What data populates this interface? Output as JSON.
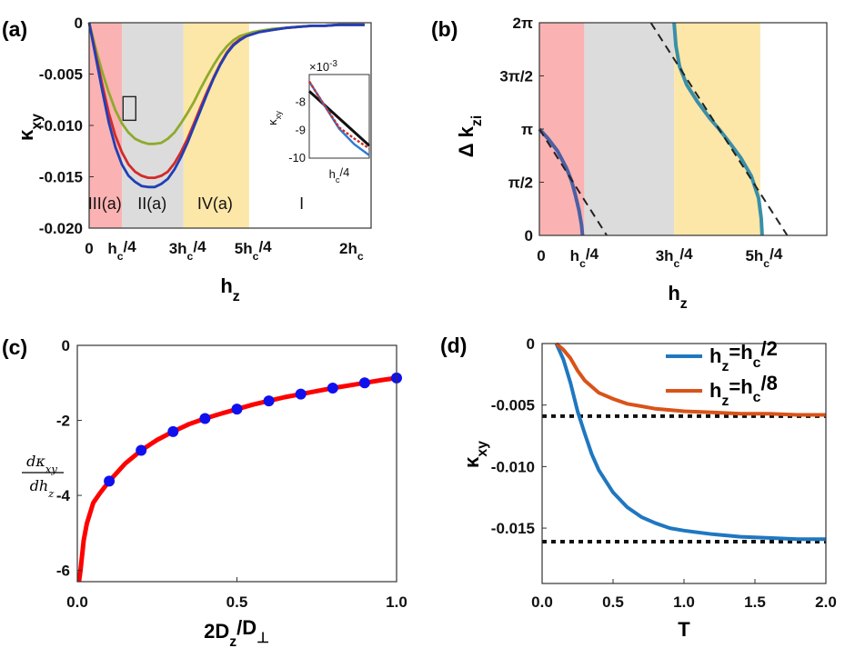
{
  "chart_data": [
    {
      "id": "a",
      "type": "line",
      "panel_label": "(a)",
      "xlabel_main": "h",
      "xlabel_sub": "z",
      "ylabel_main": "κ",
      "ylabel_sub": "xy",
      "xlim": [
        0,
        2.15
      ],
      "ylim": [
        -0.02,
        0
      ],
      "xticks": [
        {
          "v": 0,
          "main": "0",
          "sub": "",
          "rest": ""
        },
        {
          "v": 0.25,
          "main": "h",
          "sub": "c",
          "rest": "/4"
        },
        {
          "v": 0.75,
          "main": "3h",
          "sub": "c",
          "rest": "/4"
        },
        {
          "v": 1.25,
          "main": "5h",
          "sub": "c",
          "rest": "/4"
        },
        {
          "v": 2.0,
          "main": "2h",
          "sub": "c",
          "rest": ""
        }
      ],
      "yticks": [
        {
          "v": 0,
          "label": "0"
        },
        {
          "v": -0.005,
          "label": "-0.005"
        },
        {
          "v": -0.01,
          "label": "-0.010"
        },
        {
          "v": -0.015,
          "label": "-0.015"
        },
        {
          "v": -0.02,
          "label": "-0.020"
        }
      ],
      "regions": [
        {
          "x0": 0,
          "x1": 0.25,
          "color": "#fbb2b2",
          "label": "III(a)"
        },
        {
          "x0": 0.25,
          "x1": 0.72,
          "color": "#dcdcdc",
          "label": "II(a)"
        },
        {
          "x0": 0.72,
          "x1": 1.22,
          "color": "#fce7a8",
          "label": "IV(a)"
        },
        {
          "x0": 1.22,
          "x1": 2.15,
          "color": "#ffffff",
          "label": "I"
        }
      ],
      "x": [
        0,
        0.05,
        0.1,
        0.15,
        0.2,
        0.25,
        0.3,
        0.35,
        0.4,
        0.45,
        0.5,
        0.55,
        0.6,
        0.65,
        0.7,
        0.75,
        0.8,
        0.85,
        0.9,
        0.95,
        1.0,
        1.05,
        1.1,
        1.15,
        1.2,
        1.25,
        1.3,
        1.4,
        1.5,
        1.6,
        1.7,
        1.8,
        1.9,
        2.0,
        2.1
      ],
      "series": [
        {
          "name": "green",
          "color": "#8faa2e",
          "values": [
            0,
            -0.0025,
            -0.0048,
            -0.0068,
            -0.0085,
            -0.0098,
            -0.0107,
            -0.0113,
            -0.0116,
            -0.0118,
            -0.0118,
            -0.0117,
            -0.0113,
            -0.0107,
            -0.0098,
            -0.0088,
            -0.0077,
            -0.0064,
            -0.0052,
            -0.0041,
            -0.0031,
            -0.0023,
            -0.0017,
            -0.0013,
            -0.0011,
            -0.0009,
            -0.0008,
            -0.0006,
            -0.0005,
            -0.0004,
            -0.0003,
            -0.0003,
            -0.0002,
            -0.0002,
            -0.0002
          ]
        },
        {
          "name": "red",
          "color": "#d42a2a",
          "values": [
            0,
            -0.003,
            -0.006,
            -0.0088,
            -0.011,
            -0.0126,
            -0.0138,
            -0.0145,
            -0.0149,
            -0.0151,
            -0.0151,
            -0.0149,
            -0.0145,
            -0.0137,
            -0.0126,
            -0.0113,
            -0.0098,
            -0.0082,
            -0.0067,
            -0.0053,
            -0.004,
            -0.0029,
            -0.0021,
            -0.0016,
            -0.0013,
            -0.0011,
            -0.0009,
            -0.0007,
            -0.0005,
            -0.0004,
            -0.0003,
            -0.0003,
            -0.0002,
            -0.0002,
            -0.0002
          ]
        },
        {
          "name": "blue",
          "color": "#1f3fb6",
          "values": [
            0,
            -0.0033,
            -0.0066,
            -0.0097,
            -0.0121,
            -0.0138,
            -0.0149,
            -0.0155,
            -0.0159,
            -0.016,
            -0.016,
            -0.0157,
            -0.0152,
            -0.0143,
            -0.0131,
            -0.0117,
            -0.0101,
            -0.0085,
            -0.0069,
            -0.0054,
            -0.0041,
            -0.003,
            -0.0022,
            -0.0017,
            -0.0013,
            -0.0011,
            -0.0009,
            -0.0007,
            -0.0005,
            -0.0004,
            -0.0003,
            -0.0003,
            -0.0002,
            -0.0002,
            -0.0002
          ]
        }
      ],
      "zoom_box": {
        "x0": 0.21,
        "x1": 0.29,
        "y0": -0.0095,
        "y1": -0.0072
      },
      "inset": {
        "exponent_label": "×10",
        "exponent_power": "-3",
        "ylabel_main": "κ",
        "ylabel_sub": "xy",
        "xlabel_main": "h",
        "xlabel_sub": "c",
        "xlabel_rest": "/4",
        "yticks": [
          {
            "v": -8,
            "label": "-8"
          },
          {
            "v": -9,
            "label": "-9"
          },
          {
            "v": -10,
            "label": "-10"
          }
        ],
        "xlim": [
          0,
          1
        ],
        "ylim": [
          -10,
          -7
        ],
        "lines": [
          {
            "name": "black",
            "color": "#111111",
            "x": [
              0,
              1
            ],
            "y": [
              -7.6,
              -9.55
            ]
          },
          {
            "name": "blue",
            "color": "#2d7bd1",
            "x": [
              0,
              0.25,
              0.5,
              0.75,
              1
            ],
            "y": [
              -7.25,
              -8.1,
              -8.95,
              -9.5,
              -9.9
            ]
          },
          {
            "name": "red-dashed",
            "color": "#d42a2a",
            "x": [
              0,
              0.25,
              0.5,
              0.75,
              1
            ],
            "y": [
              -7.25,
              -8.1,
              -8.9,
              -9.3,
              -9.65
            ]
          }
        ]
      }
    },
    {
      "id": "b",
      "type": "line",
      "panel_label": "(b)",
      "xlabel_main": "h",
      "xlabel_sub": "z",
      "ylabel_main": "Δ k",
      "ylabel_sub": "zi",
      "xlim": [
        0,
        1.6
      ],
      "ylim": [
        0,
        6.2832
      ],
      "xticks": [
        {
          "v": 0,
          "main": "0",
          "sub": "",
          "rest": ""
        },
        {
          "v": 0.25,
          "main": "h",
          "sub": "c",
          "rest": "/4"
        },
        {
          "v": 0.75,
          "main": "3h",
          "sub": "c",
          "rest": "/4"
        },
        {
          "v": 1.25,
          "main": "5h",
          "sub": "c",
          "rest": "/4"
        }
      ],
      "yticks": [
        {
          "v": 0,
          "label": "0"
        },
        {
          "v": 1.5708,
          "label": "π/2"
        },
        {
          "v": 3.1416,
          "label": "π"
        },
        {
          "v": 4.7124,
          "label": "3π/2"
        },
        {
          "v": 6.2832,
          "label": "2π"
        }
      ],
      "regions": [
        {
          "x0": 0,
          "x1": 0.25,
          "color": "#fbb2b2"
        },
        {
          "x0": 0.25,
          "x1": 0.75,
          "color": "#dcdcdc"
        },
        {
          "x0": 0.75,
          "x1": 1.23,
          "color": "#fce7a8"
        },
        {
          "x0": 1.23,
          "x1": 1.6,
          "color": "#ffffff"
        }
      ],
      "series": [
        {
          "name": "left-curve",
          "color": "#4b5fa3",
          "x": [
            0,
            0.05,
            0.1,
            0.15,
            0.18,
            0.2,
            0.22,
            0.235,
            0.24
          ],
          "y": [
            3.1416,
            2.85,
            2.5,
            2.0,
            1.6,
            1.2,
            0.75,
            0.3,
            0
          ]
        },
        {
          "name": "right-curve",
          "color": "#3a8fa8",
          "x": [
            0.75,
            0.76,
            0.78,
            0.82,
            0.88,
            0.95,
            1.0,
            1.05,
            1.12,
            1.18,
            1.22,
            1.235,
            1.24
          ],
          "y": [
            6.2832,
            5.6,
            5.0,
            4.45,
            3.95,
            3.45,
            3.1416,
            2.8,
            2.3,
            1.75,
            1.1,
            0.5,
            0
          ]
        }
      ],
      "dashed": [
        {
          "x": [
            0,
            0.375
          ],
          "y": [
            3.1416,
            0
          ]
        },
        {
          "x": [
            0.62,
            1.38
          ],
          "y": [
            6.2832,
            0
          ]
        }
      ]
    },
    {
      "id": "c",
      "type": "line",
      "panel_label": "(c)",
      "xlabel_main": "2D",
      "xlabel_sub": "z",
      "xlabel_mid": "/D",
      "xlabel_sub2": "⊥",
      "ylabel_num": "dκ",
      "ylabel_num_sub": "xy",
      "ylabel_den": "dh",
      "ylabel_den_sub": "z",
      "xlim": [
        0,
        1.0
      ],
      "ylim": [
        -6.3,
        0
      ],
      "xticks": [
        {
          "v": 0,
          "label": "0.0"
        },
        {
          "v": 0.5,
          "label": "0.5"
        },
        {
          "v": 1.0,
          "label": "1.0"
        }
      ],
      "yticks": [
        {
          "v": 0,
          "label": "0"
        },
        {
          "v": -2,
          "label": "-2"
        },
        {
          "v": -4,
          "label": "-4"
        },
        {
          "v": -6,
          "label": "-6"
        }
      ],
      "curve_color": "#ff0000",
      "curve_x": [
        0.005,
        0.01,
        0.02,
        0.03,
        0.05,
        0.07,
        0.1,
        0.15,
        0.2,
        0.25,
        0.3,
        0.35,
        0.4,
        0.45,
        0.5,
        0.55,
        0.6,
        0.65,
        0.7,
        0.75,
        0.8,
        0.85,
        0.9,
        0.95,
        1.0
      ],
      "curve_y": [
        -6.3,
        -6.0,
        -5.2,
        -4.75,
        -4.2,
        -3.95,
        -3.62,
        -3.15,
        -2.8,
        -2.52,
        -2.3,
        -2.1,
        -1.95,
        -1.82,
        -1.7,
        -1.58,
        -1.48,
        -1.38,
        -1.3,
        -1.22,
        -1.14,
        -1.07,
        -1.0,
        -0.93,
        -0.87
      ],
      "points_color": "#1010ee",
      "points_x": [
        0.1,
        0.2,
        0.3,
        0.4,
        0.5,
        0.6,
        0.7,
        0.8,
        0.9,
        1.0
      ],
      "points_y": [
        -3.62,
        -2.8,
        -2.3,
        -1.95,
        -1.7,
        -1.48,
        -1.3,
        -1.14,
        -1.0,
        -0.87
      ]
    },
    {
      "id": "d",
      "type": "line",
      "panel_label": "(d)",
      "xlabel": "T",
      "ylabel_main": "κ",
      "ylabel_sub": "xy",
      "xlim": [
        0,
        2.0
      ],
      "ylim": [
        -0.0195,
        0
      ],
      "xticks": [
        {
          "v": 0,
          "label": "0.0"
        },
        {
          "v": 0.5,
          "label": "0.5"
        },
        {
          "v": 1.0,
          "label": "1.0"
        },
        {
          "v": 1.5,
          "label": "1.5"
        },
        {
          "v": 2.0,
          "label": "2.0"
        }
      ],
      "yticks": [
        {
          "v": 0,
          "label": "0"
        },
        {
          "v": -0.005,
          "label": "-0.005"
        },
        {
          "v": -0.01,
          "label": "-0.010"
        },
        {
          "v": -0.015,
          "label": "-0.015"
        }
      ],
      "series": [
        {
          "name": "hz=hc/2",
          "legend_main": "h",
          "legend_sub1": "z",
          "legend_eq": "=h",
          "legend_sub2": "c",
          "legend_rest": "/2",
          "color": "#1f77c0",
          "x": [
            0.1,
            0.15,
            0.2,
            0.25,
            0.3,
            0.35,
            0.4,
            0.5,
            0.6,
            0.7,
            0.8,
            0.9,
            1.0,
            1.2,
            1.4,
            1.6,
            1.8,
            2.0
          ],
          "y": [
            0,
            -0.0013,
            -0.0032,
            -0.0055,
            -0.0073,
            -0.009,
            -0.0103,
            -0.0121,
            -0.0133,
            -0.0141,
            -0.0146,
            -0.015,
            -0.0152,
            -0.0155,
            -0.0157,
            -0.0158,
            -0.0159,
            -0.0159
          ]
        },
        {
          "name": "hz=hc/8",
          "legend_main": "h",
          "legend_sub1": "z",
          "legend_eq": "=h",
          "legend_sub2": "c",
          "legend_rest": "/8",
          "color": "#d95319",
          "x": [
            0.1,
            0.15,
            0.2,
            0.25,
            0.3,
            0.4,
            0.5,
            0.6,
            0.7,
            0.8,
            1.0,
            1.2,
            1.4,
            1.6,
            1.8,
            2.0
          ],
          "y": [
            0,
            -0.0005,
            -0.0012,
            -0.0022,
            -0.003,
            -0.004,
            -0.0045,
            -0.0049,
            -0.0051,
            -0.0053,
            -0.0055,
            -0.0056,
            -0.0057,
            -0.0057,
            -0.0058,
            -0.0058
          ]
        }
      ],
      "hlines": [
        -0.0059,
        -0.0161
      ]
    }
  ]
}
